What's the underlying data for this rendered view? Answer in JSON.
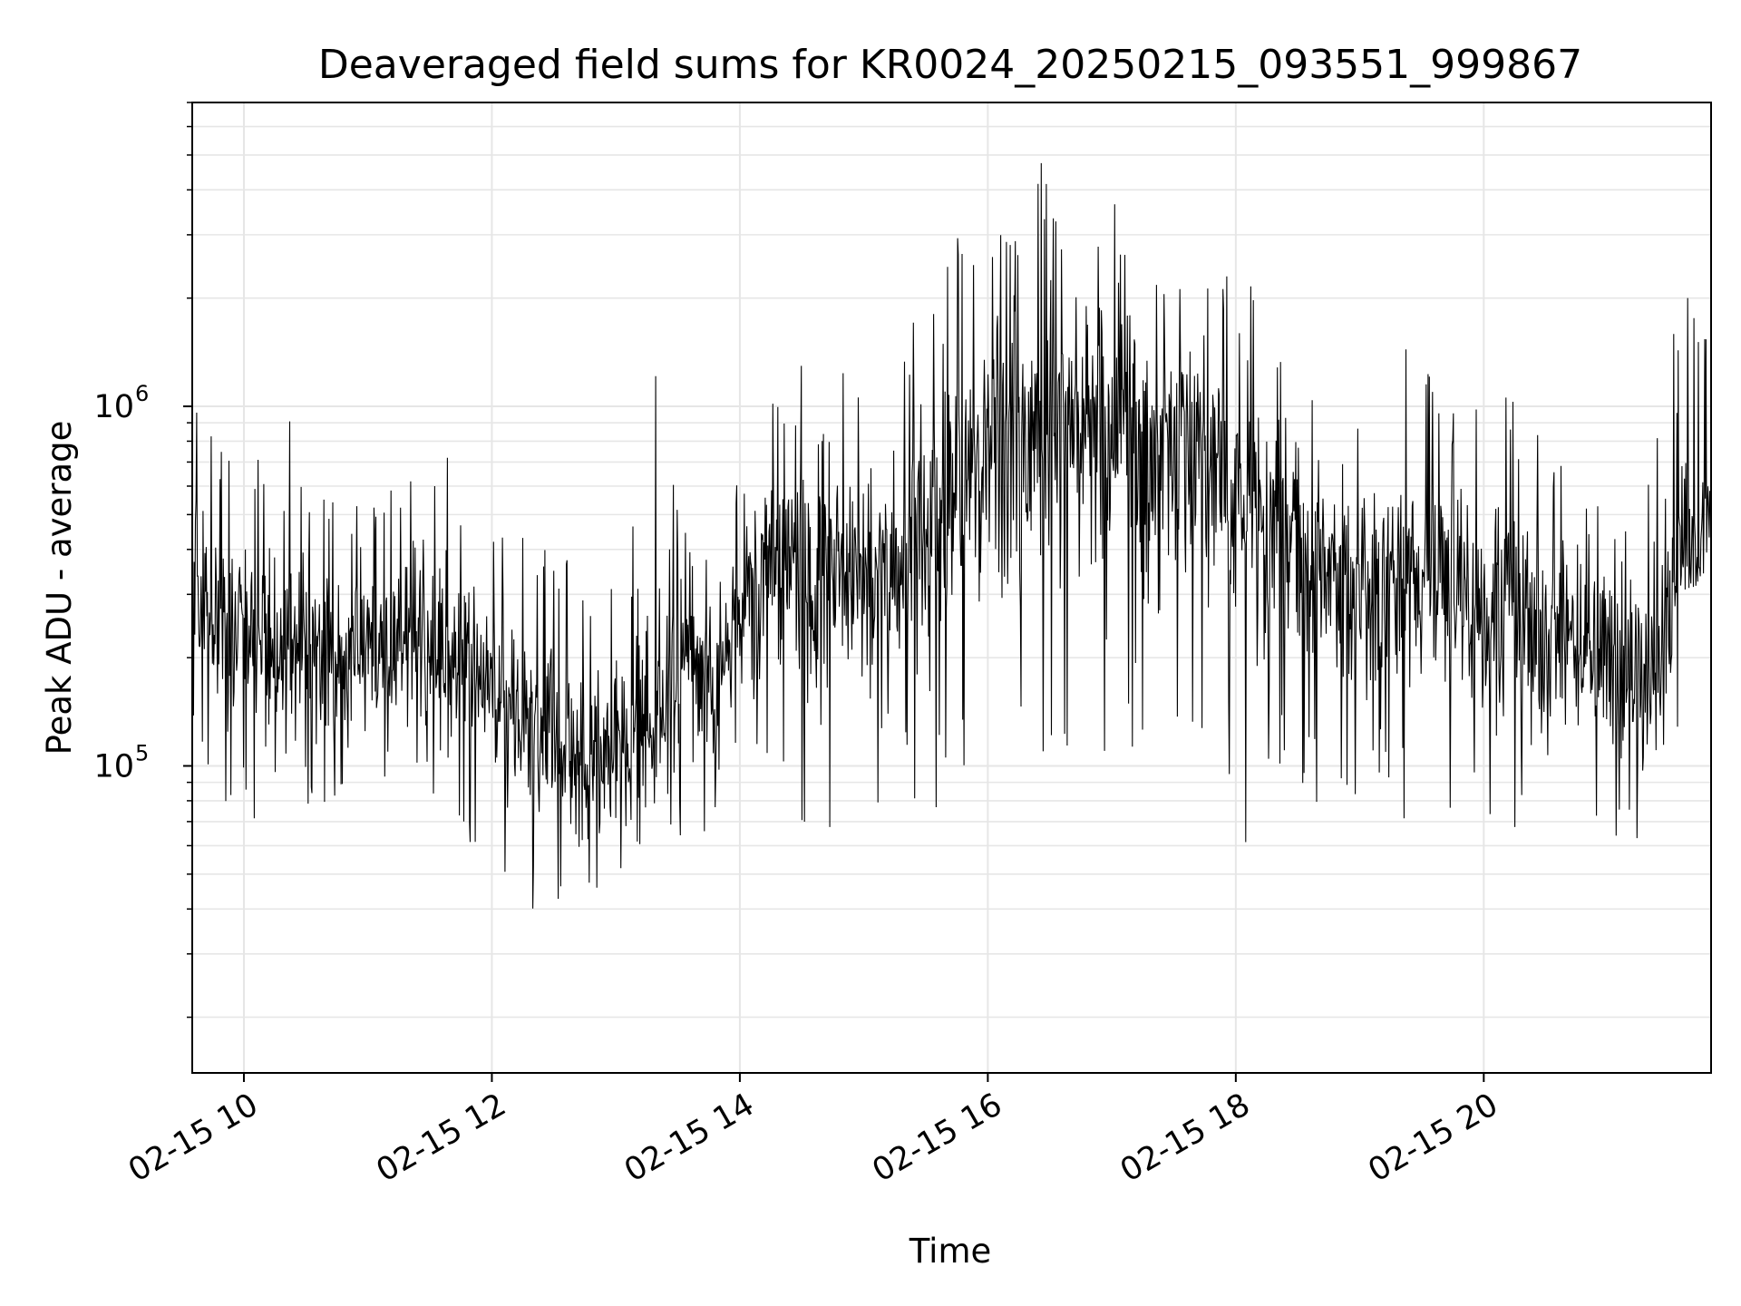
{
  "chart_data": {
    "type": "line",
    "title": "Deaveraged field sums for KR0024_20250215_093551_999867",
    "xlabel": "Time",
    "ylabel": "Peak ADU - average",
    "yscale": "log",
    "xlim": [
      "2025-02-15 09:35",
      "2025-02-15 21:50"
    ],
    "ylim": [
      14000,
      7000000
    ],
    "grid": true,
    "x_ticks": [
      {
        "value": "2025-02-15 10:00",
        "label": "02-15 10"
      },
      {
        "value": "2025-02-15 12:00",
        "label": "02-15 12"
      },
      {
        "value": "2025-02-15 14:00",
        "label": "02-15 14"
      },
      {
        "value": "2025-02-15 16:00",
        "label": "02-15 16"
      },
      {
        "value": "2025-02-15 18:00",
        "label": "02-15 18"
      },
      {
        "value": "2025-02-15 20:00",
        "label": "02-15 20"
      }
    ],
    "y_ticks": [
      {
        "value": 100000,
        "base": "10",
        "exponent": "5"
      },
      {
        "value": 1000000,
        "base": "10",
        "exponent": "6"
      }
    ],
    "line_color": "#000000",
    "grid_color": "#e6e6e6",
    "series": [
      {
        "x": [
          "2025-02-15 09:35",
          "2025-02-15 09:50",
          "2025-02-15 10:05",
          "2025-02-15 10:20",
          "2025-02-15 10:35",
          "2025-02-15 10:50",
          "2025-02-15 11:05",
          "2025-02-15 11:20",
          "2025-02-15 11:35",
          "2025-02-15 11:50",
          "2025-02-15 12:05",
          "2025-02-15 12:20",
          "2025-02-15 12:35",
          "2025-02-15 12:50",
          "2025-02-15 13:05",
          "2025-02-15 13:20",
          "2025-02-15 13:35",
          "2025-02-15 13:50",
          "2025-02-15 14:05",
          "2025-02-15 14:20",
          "2025-02-15 14:35",
          "2025-02-15 14:50",
          "2025-02-15 15:05",
          "2025-02-15 15:20",
          "2025-02-15 15:35",
          "2025-02-15 15:50",
          "2025-02-15 16:05",
          "2025-02-15 16:20",
          "2025-02-15 16:35",
          "2025-02-15 16:50",
          "2025-02-15 17:05",
          "2025-02-15 17:20",
          "2025-02-15 17:35",
          "2025-02-15 17:50",
          "2025-02-15 18:05",
          "2025-02-15 18:20",
          "2025-02-15 18:35",
          "2025-02-15 18:50",
          "2025-02-15 19:05",
          "2025-02-15 19:20",
          "2025-02-15 19:35",
          "2025-02-15 19:50",
          "2025-02-15 20:05",
          "2025-02-15 20:20",
          "2025-02-15 20:35",
          "2025-02-15 20:50",
          "2025-02-15 21:05",
          "2025-02-15 21:20",
          "2025-02-15 21:35",
          "2025-02-15 21:50"
        ],
        "y": [
          300000,
          250000,
          240000,
          210000,
          190000,
          200000,
          210000,
          220000,
          200000,
          180000,
          150000,
          140000,
          110000,
          100000,
          120000,
          130000,
          210000,
          170000,
          350000,
          380000,
          420000,
          380000,
          340000,
          420000,
          500000,
          620000,
          780000,
          850000,
          900000,
          780000,
          950000,
          820000,
          880000,
          720000,
          520000,
          480000,
          380000,
          350000,
          300000,
          330000,
          360000,
          300000,
          260000,
          240000,
          220000,
          210000,
          170000,
          160000,
          420000,
          450000
        ],
        "y_low": [
          120000,
          80000,
          70000,
          90000,
          70000,
          80000,
          90000,
          90000,
          70000,
          60000,
          50000,
          40000,
          35000,
          40000,
          45000,
          50000,
          60000,
          60000,
          70000,
          80000,
          40000,
          100000,
          70000,
          80000,
          70000,
          100000,
          120000,
          100000,
          110000,
          90000,
          130000,
          80000,
          100000,
          90000,
          50000,
          100000,
          80000,
          70000,
          60000,
          70000,
          80000,
          70000,
          60000,
          70000,
          70000,
          60000,
          60000,
          60000,
          120000,
          250000
        ],
        "y_high": [
          1200000,
          800000,
          700000,
          1400000,
          600000,
          500000,
          600000,
          700000,
          900000,
          600000,
          500000,
          500000,
          400000,
          300000,
          600000,
          1400000,
          400000,
          500000,
          700000,
          1200000,
          1900000,
          1300000,
          1100000,
          1800000,
          2000000,
          3500000,
          4200000,
          4800000,
          5500000,
          4500000,
          3700000,
          2500000,
          2800000,
          2400000,
          2500000,
          1700000,
          1500000,
          1200000,
          1300000,
          1700000,
          1200000,
          1100000,
          1200000,
          1000000,
          800000,
          700000,
          600000,
          700000,
          2400000,
          1500000
        ]
      }
    ]
  }
}
